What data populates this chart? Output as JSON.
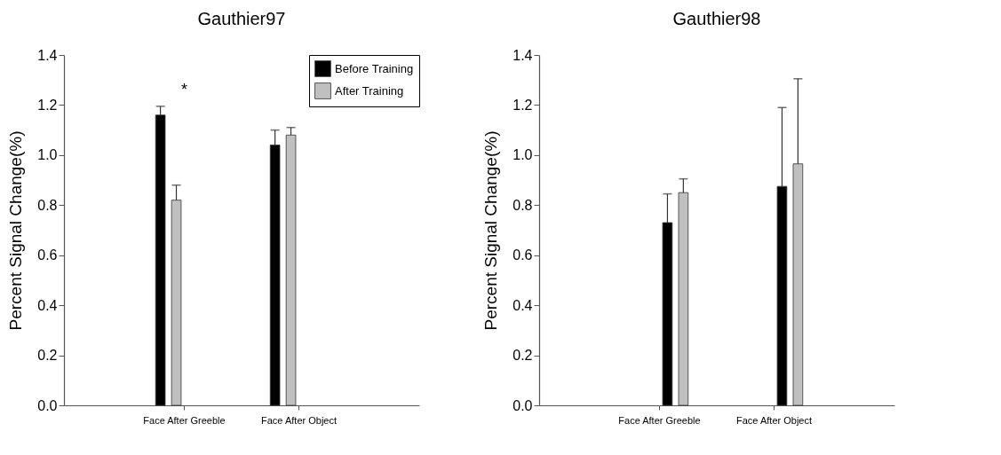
{
  "chart_data": [
    {
      "type": "bar",
      "title": "Gauthier97",
      "ylabel": "Percent Signal Change(%)",
      "categories": [
        "Face After Greeble",
        "Face After Object"
      ],
      "series": [
        {
          "name": "Before Training",
          "color": "#000000",
          "values": [
            1.16,
            1.04
          ],
          "errors": [
            [
              1.16,
              1.195
            ],
            [
              1.04,
              1.1
            ]
          ]
        },
        {
          "name": "After Training",
          "color": "#c0c0c0",
          "values": [
            0.82,
            1.08
          ],
          "errors": [
            [
              0.82,
              0.88
            ],
            [
              1.08,
              1.11
            ]
          ]
        }
      ],
      "ylim": [
        0,
        1.4
      ],
      "yticks": [
        {
          "value": 0,
          "label": "0.0"
        },
        {
          "value": 0.2,
          "label": "0.2"
        },
        {
          "value": 0.4,
          "label": "0.4"
        },
        {
          "value": 0.6,
          "label": "0.6"
        },
        {
          "value": 0.8,
          "label": "0.8"
        },
        {
          "value": 1,
          "label": "1.0"
        },
        {
          "value": 1.2,
          "label": "1.2"
        },
        {
          "value": 1.4,
          "label": "1.4"
        }
      ],
      "annotations": [
        "*"
      ],
      "legend": "top right",
      "grid": false
    },
    {
      "type": "bar",
      "title": "Gauthier98",
      "ylabel": "Percent Signal Change(%)",
      "categories": [
        "Face After Greeble",
        "Face After Object"
      ],
      "series": [
        {
          "color": "#000000",
          "values": [
            0.73,
            0.875
          ],
          "errors": [
            [
              0.73,
              0.845
            ],
            [
              0.875,
              1.19
            ]
          ]
        },
        {
          "color": "#c0c0c0",
          "values": [
            0.85,
            0.965
          ],
          "errors": [
            [
              0.85,
              0.905
            ],
            [
              0.965,
              1.305
            ]
          ]
        }
      ],
      "ylim": [
        0,
        1.4
      ],
      "yticks": [
        {
          "value": 0,
          "label": "0.0"
        },
        {
          "value": 0.2,
          "label": "0.2"
        },
        {
          "value": 0.4,
          "label": "0.4"
        },
        {
          "value": 0.6,
          "label": "0.6"
        },
        {
          "value": 0.8,
          "label": "0.8"
        },
        {
          "value": 1,
          "label": "1.0"
        },
        {
          "value": 1.2,
          "label": "1.2"
        },
        {
          "value": 1.4,
          "label": "1.4"
        }
      ],
      "grid": false
    }
  ]
}
